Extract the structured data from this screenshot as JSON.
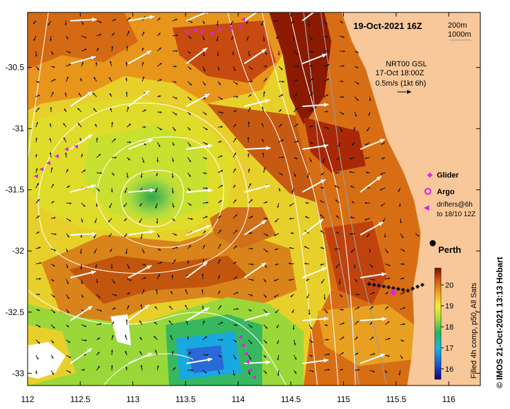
{
  "title": "19-Oct-2021 16Z",
  "scale": {
    "shallow": "200m",
    "deep": "1000m"
  },
  "current_info": {
    "line1": "NRT00 GSL",
    "line2": "17-Oct 18:00Z",
    "line3": "0.5m/s (1kt 6h)"
  },
  "legend": {
    "glider": "Glider",
    "argo": "Argo",
    "drifters_line1": "drifters@6h",
    "drifters_line2": "to 18/10 12Z"
  },
  "place": "Perth",
  "colorbar": {
    "label": "Filled 4h comp, p50, All Sats",
    "ticks": [
      "16",
      "17",
      "18",
      "19",
      "20"
    ],
    "range": [
      15.5,
      20.8
    ]
  },
  "credit": "© IMOS 21-Oct-2021 13:13 Hobart",
  "axes": {
    "x_ticks": [
      "112",
      "112.5",
      "113",
      "113.5",
      "114",
      "114.5",
      "115",
      "115.5",
      "116"
    ],
    "y_ticks": [
      "-30.5",
      "-31",
      "-31.5",
      "-32",
      "-32.5",
      "-33"
    ],
    "lon_range": [
      112,
      116.3
    ],
    "lat_range": [
      -30.05,
      -33.1
    ]
  },
  "colors": {
    "land": "#f8c89a",
    "warm": "#8b1a00",
    "cool": "#1e7bd8",
    "glider": "#e020e0"
  }
}
